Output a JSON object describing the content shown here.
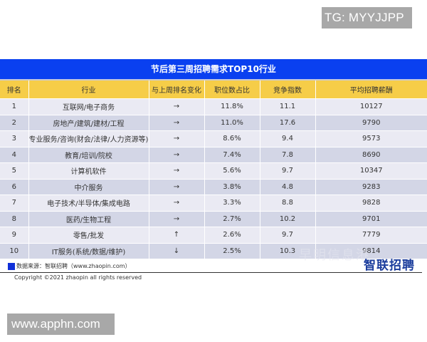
{
  "watermarks": {
    "top_right": "TG: MYYJJPP",
    "bottom_left": "www.apphn.com",
    "faint_overlay": "早明信息港"
  },
  "table": {
    "title": "节后第三周招聘需求TOP10行业",
    "colors": {
      "title_bg": "#0a40f0",
      "header_bg": "#f6cd48",
      "row_light": "#eaeaf3",
      "row_dark": "#d3d6e6"
    },
    "headers": [
      "排名",
      "行业",
      "与上周排名变化",
      "职位数占比",
      "竞争指数",
      "平均招聘薪酬"
    ],
    "rows": [
      {
        "rank": "1",
        "industry": "互联网/电子商务",
        "change": "→",
        "share": "11.8%",
        "competition": "11.1",
        "salary": "10127"
      },
      {
        "rank": "2",
        "industry": "房地产/建筑/建材/工程",
        "change": "→",
        "share": "11.0%",
        "competition": "17.6",
        "salary": "9790"
      },
      {
        "rank": "3",
        "industry": "专业服务/咨询(财会/法律/人力资源等)",
        "change": "→",
        "share": "8.6%",
        "competition": "9.4",
        "salary": "9573"
      },
      {
        "rank": "4",
        "industry": "教育/培训/院校",
        "change": "→",
        "share": "7.4%",
        "competition": "7.8",
        "salary": "8690"
      },
      {
        "rank": "5",
        "industry": "计算机软件",
        "change": "→",
        "share": "5.6%",
        "competition": "9.7",
        "salary": "10347"
      },
      {
        "rank": "6",
        "industry": "中介服务",
        "change": "→",
        "share": "3.8%",
        "competition": "4.8",
        "salary": "9283"
      },
      {
        "rank": "7",
        "industry": "电子技术/半导体/集成电路",
        "change": "→",
        "share": "3.3%",
        "competition": "8.8",
        "salary": "9828"
      },
      {
        "rank": "8",
        "industry": "医药/生物工程",
        "change": "→",
        "share": "2.7%",
        "competition": "10.2",
        "salary": "9701"
      },
      {
        "rank": "9",
        "industry": "零售/批发",
        "change": "↑",
        "share": "2.6%",
        "competition": "9.7",
        "salary": "7779"
      },
      {
        "rank": "10",
        "industry": "IT服务(系统/数据/维护)",
        "change": "↓",
        "share": "2.5%",
        "competition": "10.3",
        "salary": "9814"
      }
    ]
  },
  "footer": {
    "source": "数据来源：智联招聘（www.zhaopin.com）",
    "logo": "智联招聘",
    "copyright": "Copyright ©2021 zhaopin all rights reserved"
  }
}
